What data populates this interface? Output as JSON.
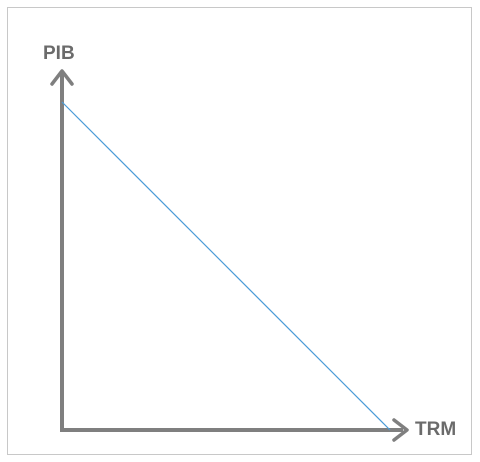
{
  "diagram": {
    "y_axis_label": "PIB",
    "x_axis_label": "TRM",
    "colors": {
      "axis": "#7f7f7f",
      "line": "#4a9bd8",
      "label": "#6b6b6b",
      "border": "#c8c8c8"
    },
    "relationship": "negative-linear"
  }
}
